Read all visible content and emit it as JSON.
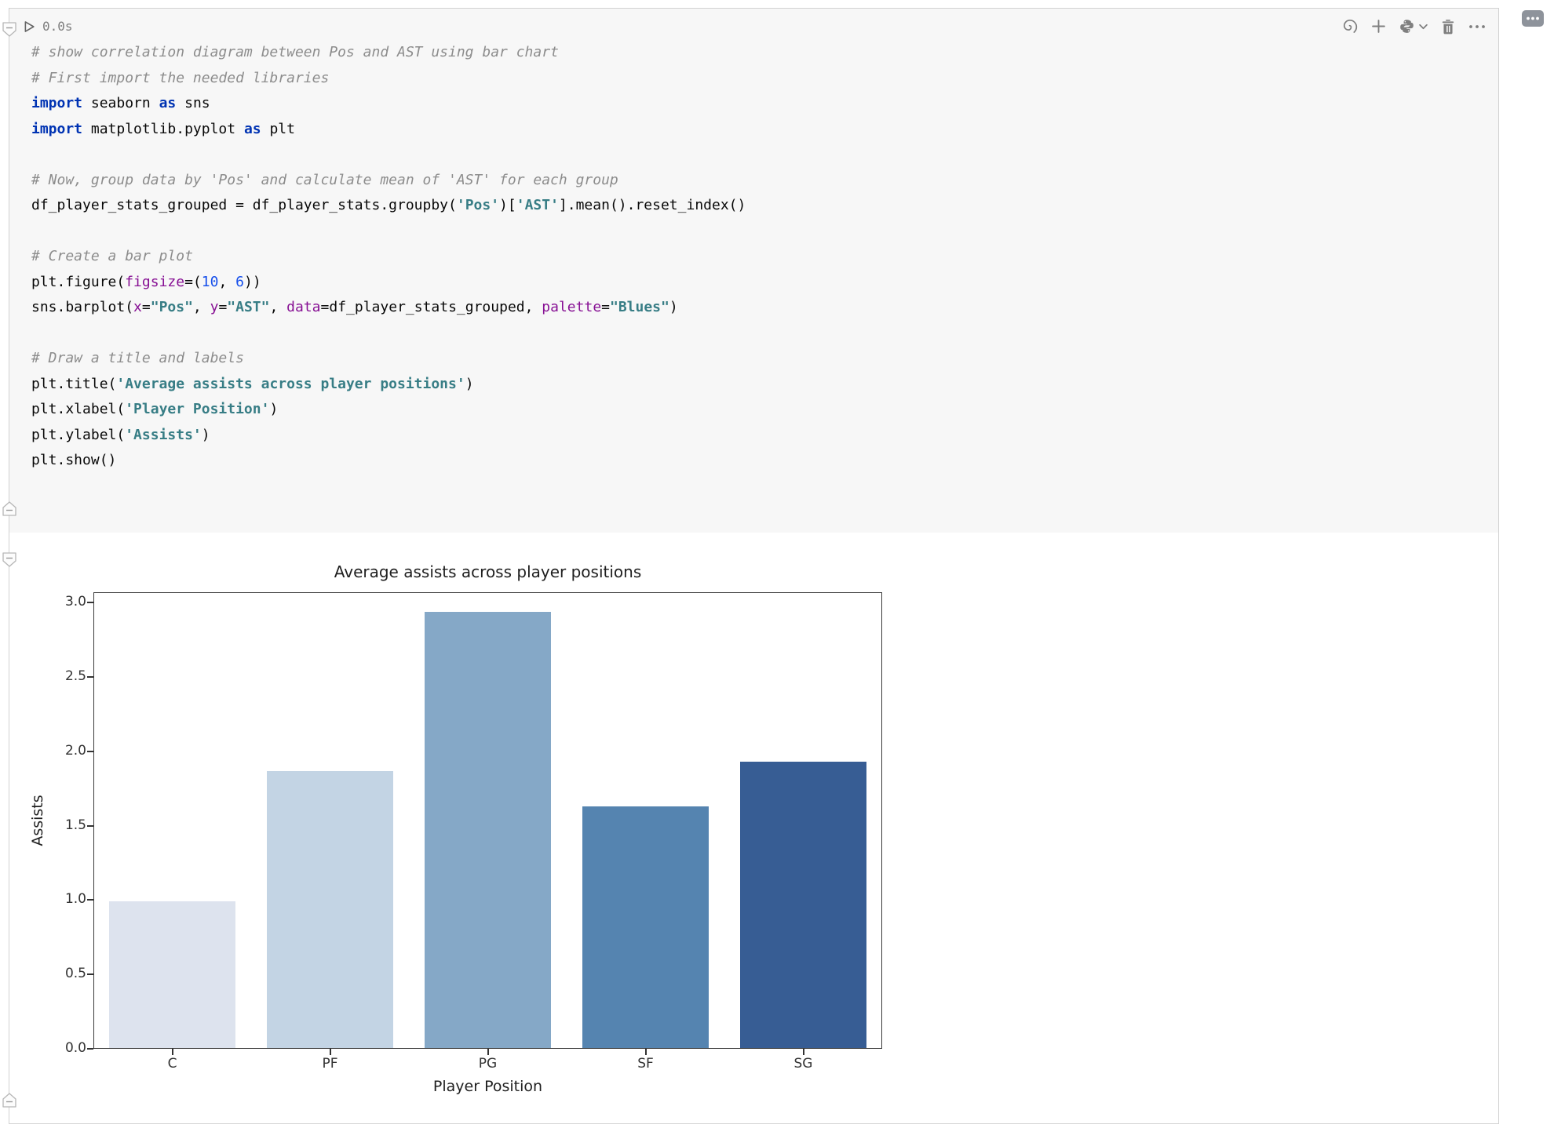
{
  "cell": {
    "execution_time": "0.0s",
    "toolbar": {
      "run_icon": "run-icon",
      "icons": [
        "spiral-icon",
        "plus-icon",
        "python-logo-icon",
        "chevron-down-icon",
        "trash-icon",
        "ellipsis-icon"
      ],
      "comment_icon": "comment-bubble-icon"
    }
  },
  "code": {
    "lines": [
      [
        {
          "s": "c",
          "t": "# show correlation diagram between Pos and AST using bar chart"
        }
      ],
      [
        {
          "s": "c",
          "t": "# First import the needed libraries"
        }
      ],
      [
        {
          "s": "k",
          "t": "import"
        },
        {
          "s": "t",
          "t": " seaborn "
        },
        {
          "s": "k",
          "t": "as"
        },
        {
          "s": "t",
          "t": " sns"
        }
      ],
      [
        {
          "s": "k",
          "t": "import"
        },
        {
          "s": "t",
          "t": " matplotlib.pyplot "
        },
        {
          "s": "k",
          "t": "as"
        },
        {
          "s": "t",
          "t": " plt"
        }
      ],
      [],
      [
        {
          "s": "c",
          "t": "# Now, group data by 'Pos' and calculate mean of 'AST' for each group"
        }
      ],
      [
        {
          "s": "t",
          "t": "df_player_stats_grouped = df_player_stats.groupby("
        },
        {
          "s": "s",
          "t": "'Pos'"
        },
        {
          "s": "t",
          "t": ")["
        },
        {
          "s": "s",
          "t": "'AST'"
        },
        {
          "s": "t",
          "t": "].mean().reset_index()"
        }
      ],
      [],
      [
        {
          "s": "c",
          "t": "# Create a bar plot"
        }
      ],
      [
        {
          "s": "t",
          "t": "plt.figure("
        },
        {
          "s": "p",
          "t": "figsize"
        },
        {
          "s": "t",
          "t": "=("
        },
        {
          "s": "n",
          "t": "10"
        },
        {
          "s": "t",
          "t": ", "
        },
        {
          "s": "n",
          "t": "6"
        },
        {
          "s": "t",
          "t": "))"
        }
      ],
      [
        {
          "s": "t",
          "t": "sns.barplot("
        },
        {
          "s": "p",
          "t": "x"
        },
        {
          "s": "t",
          "t": "="
        },
        {
          "s": "s",
          "t": "\"Pos\""
        },
        {
          "s": "t",
          "t": ", "
        },
        {
          "s": "p",
          "t": "y"
        },
        {
          "s": "t",
          "t": "="
        },
        {
          "s": "s",
          "t": "\"AST\""
        },
        {
          "s": "t",
          "t": ", "
        },
        {
          "s": "p",
          "t": "data"
        },
        {
          "s": "t",
          "t": "=df_player_stats_grouped, "
        },
        {
          "s": "p",
          "t": "palette"
        },
        {
          "s": "t",
          "t": "="
        },
        {
          "s": "s",
          "t": "\"Blues\""
        },
        {
          "s": "t",
          "t": ")"
        }
      ],
      [],
      [
        {
          "s": "c",
          "t": "# Draw a title and labels"
        }
      ],
      [
        {
          "s": "t",
          "t": "plt.title("
        },
        {
          "s": "s",
          "t": "'Average assists across player positions'"
        },
        {
          "s": "t",
          "t": ")"
        }
      ],
      [
        {
          "s": "t",
          "t": "plt.xlabel("
        },
        {
          "s": "s",
          "t": "'Player Position'"
        },
        {
          "s": "t",
          "t": ")"
        }
      ],
      [
        {
          "s": "t",
          "t": "plt.ylabel("
        },
        {
          "s": "s",
          "t": "'Assists'"
        },
        {
          "s": "t",
          "t": ")"
        }
      ],
      [
        {
          "s": "t",
          "t": "plt.show()"
        }
      ]
    ]
  },
  "chart_data": {
    "type": "bar",
    "title": "Average assists across player positions",
    "xlabel": "Player Position",
    "ylabel": "Assists",
    "categories": [
      "C",
      "PF",
      "PG",
      "SF",
      "SG"
    ],
    "values": [
      0.99,
      1.87,
      2.94,
      1.63,
      1.93
    ],
    "bar_colors": [
      "#dde3ee",
      "#c3d4e4",
      "#85a8c7",
      "#5584b0",
      "#375d94"
    ],
    "palette": "Blues",
    "ylim": [
      0,
      3.07
    ],
    "yticks": [
      0,
      0.5,
      1,
      1.5,
      2,
      2.5,
      3
    ],
    "grid": false,
    "legend": null
  }
}
